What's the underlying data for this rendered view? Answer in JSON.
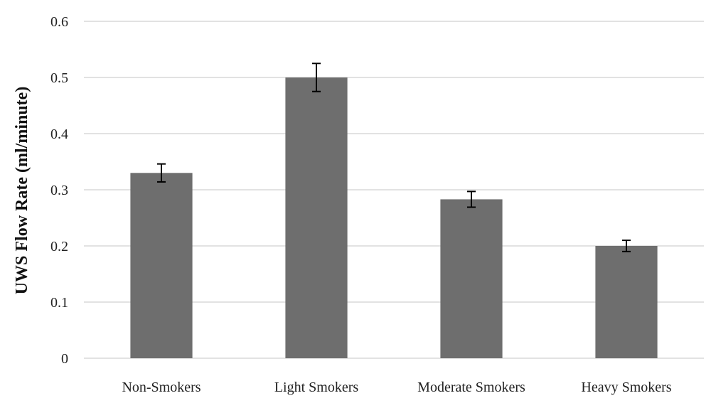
{
  "chart_data": {
    "type": "bar",
    "title": "",
    "xlabel": "",
    "ylabel": "UWS Flow Rate (ml/minute)",
    "categories": [
      "Non-Smokers",
      "Light Smokers",
      "Moderate Smokers",
      "Heavy Smokers"
    ],
    "values": [
      0.33,
      0.5,
      0.283,
      0.2
    ],
    "error": [
      0.016,
      0.025,
      0.014,
      0.01
    ],
    "ylim": [
      0,
      0.6
    ],
    "yticks": [
      0,
      0.1,
      0.2,
      0.3,
      0.4,
      0.5,
      0.6
    ],
    "ytick_labels": [
      "0",
      "0.1",
      "0.2",
      "0.3",
      "0.4",
      "0.5",
      "0.6"
    ],
    "grid": true,
    "legend": "none",
    "bar_color": "#6e6e6e"
  }
}
